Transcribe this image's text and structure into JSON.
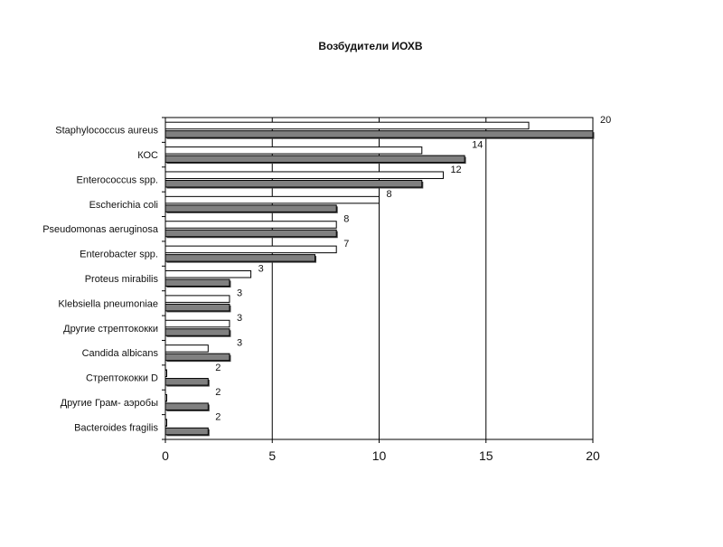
{
  "chart_data": {
    "type": "bar",
    "orientation": "horizontal",
    "title": "Возбудители ИОХВ",
    "xlabel": "",
    "ylabel": "",
    "categories": [
      "Staphylococcus aureus",
      "КОС",
      "Enterococcus spp.",
      "Escherichia coli",
      "Pseudomonas aeruginosa",
      "Enterobacter spp.",
      "Proteus mirabilis",
      "Klebsiella pneumoniae",
      "Другие стрептококки",
      "Candida albicans",
      "Стрептококки D",
      "Другие Грам- аэробы",
      "Bacteroides fragilis"
    ],
    "series": [
      {
        "color": "#ffffff",
        "values": [
          17,
          12,
          13,
          10,
          8,
          8,
          4,
          3,
          3,
          2,
          0,
          0,
          0
        ]
      },
      {
        "color": "#808080",
        "values": [
          20,
          14,
          12,
          8,
          8,
          7,
          3,
          3,
          3,
          3,
          2,
          2,
          2
        ]
      }
    ],
    "data_labels": [
      "20",
      "14",
      "12",
      "8",
      "8",
      "7",
      "3",
      "3",
      "3",
      "3",
      "2",
      "2",
      "2"
    ],
    "xlim": [
      0,
      20
    ],
    "xticks": [
      0,
      5,
      10,
      15,
      20
    ],
    "grid": "vertical"
  }
}
